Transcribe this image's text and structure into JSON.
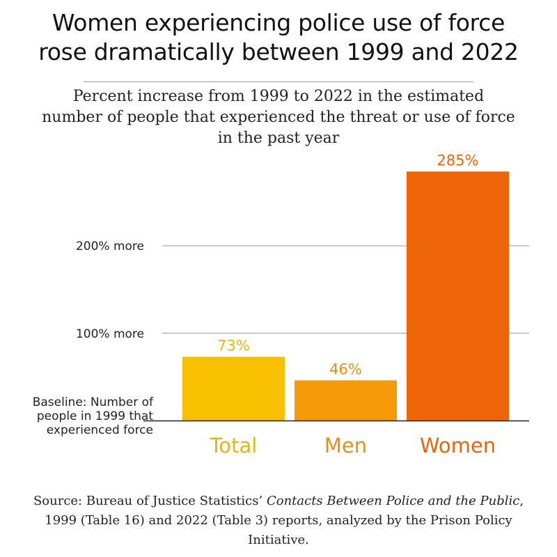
{
  "title_lines": [
    "Women experiencing police use of force",
    "rose dramatically between 1999 and 2022"
  ],
  "subtitle_lines": [
    "Percent increase from 1999 to 2022 in the estimated",
    "number of people that experienced the threat or use of force",
    "in the past year"
  ],
  "chart_data": {
    "type": "bar",
    "categories": [
      "Total",
      "Men",
      "Women"
    ],
    "values": [
      73,
      46,
      285
    ],
    "value_labels": [
      "73%",
      "46%",
      "285%"
    ],
    "colors": [
      "#f9c000",
      "#f79a0a",
      "#ee6507"
    ],
    "label_colors": [
      "#e8b40f",
      "#e3901a",
      "#e8650c"
    ],
    "ylim": [
      0,
      300
    ],
    "gridlines": [
      {
        "value": 100,
        "label": "100% more"
      },
      {
        "value": 200,
        "label": "200% more"
      }
    ],
    "baseline_label": [
      "Baseline: Number of",
      "people in 1999 that",
      "experienced force"
    ]
  },
  "source": {
    "prefix": "Source: Bureau of Justice Statistics’ ",
    "italic": "Contacts Between Police and the Public",
    "suffix": ", 1999 (Table 16) and 2022 (Table 3) reports, analyzed by the Prison Policy Initiative."
  }
}
